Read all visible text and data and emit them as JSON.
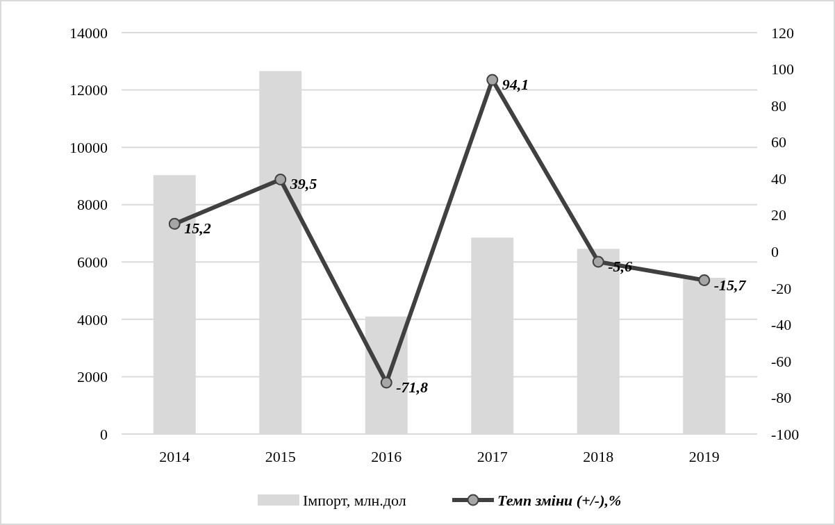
{
  "chart_data": {
    "type": "bar",
    "categories": [
      "2014",
      "2015",
      "2016",
      "2017",
      "2018",
      "2019"
    ],
    "series": [
      {
        "name": "Імпорт, млн.дол",
        "color": "#d9d9d9",
        "values": [
          9030,
          12660,
          4100,
          6850,
          6460,
          5450
        ]
      },
      {
        "name": "Темп зміни (+/-),%",
        "type": "line",
        "axis": "y2",
        "color": "#404040",
        "values": [
          15.2,
          39.5,
          -71.8,
          94.1,
          -5.6,
          -15.7
        ],
        "value_labels": [
          "15,2",
          "39,5",
          "-71,8",
          "94,1",
          "-5,6",
          "-15,7"
        ],
        "marker": "circle"
      }
    ],
    "ylim": [
      0,
      14000
    ],
    "yticks": [
      0,
      2000,
      4000,
      6000,
      8000,
      10000,
      12000,
      14000
    ],
    "y2lim": [
      -100,
      120
    ],
    "y2ticks": [
      -100,
      -80,
      -60,
      -40,
      -20,
      0,
      20,
      40,
      60,
      80,
      100,
      120
    ],
    "grid": "y",
    "legend": "bottom"
  }
}
